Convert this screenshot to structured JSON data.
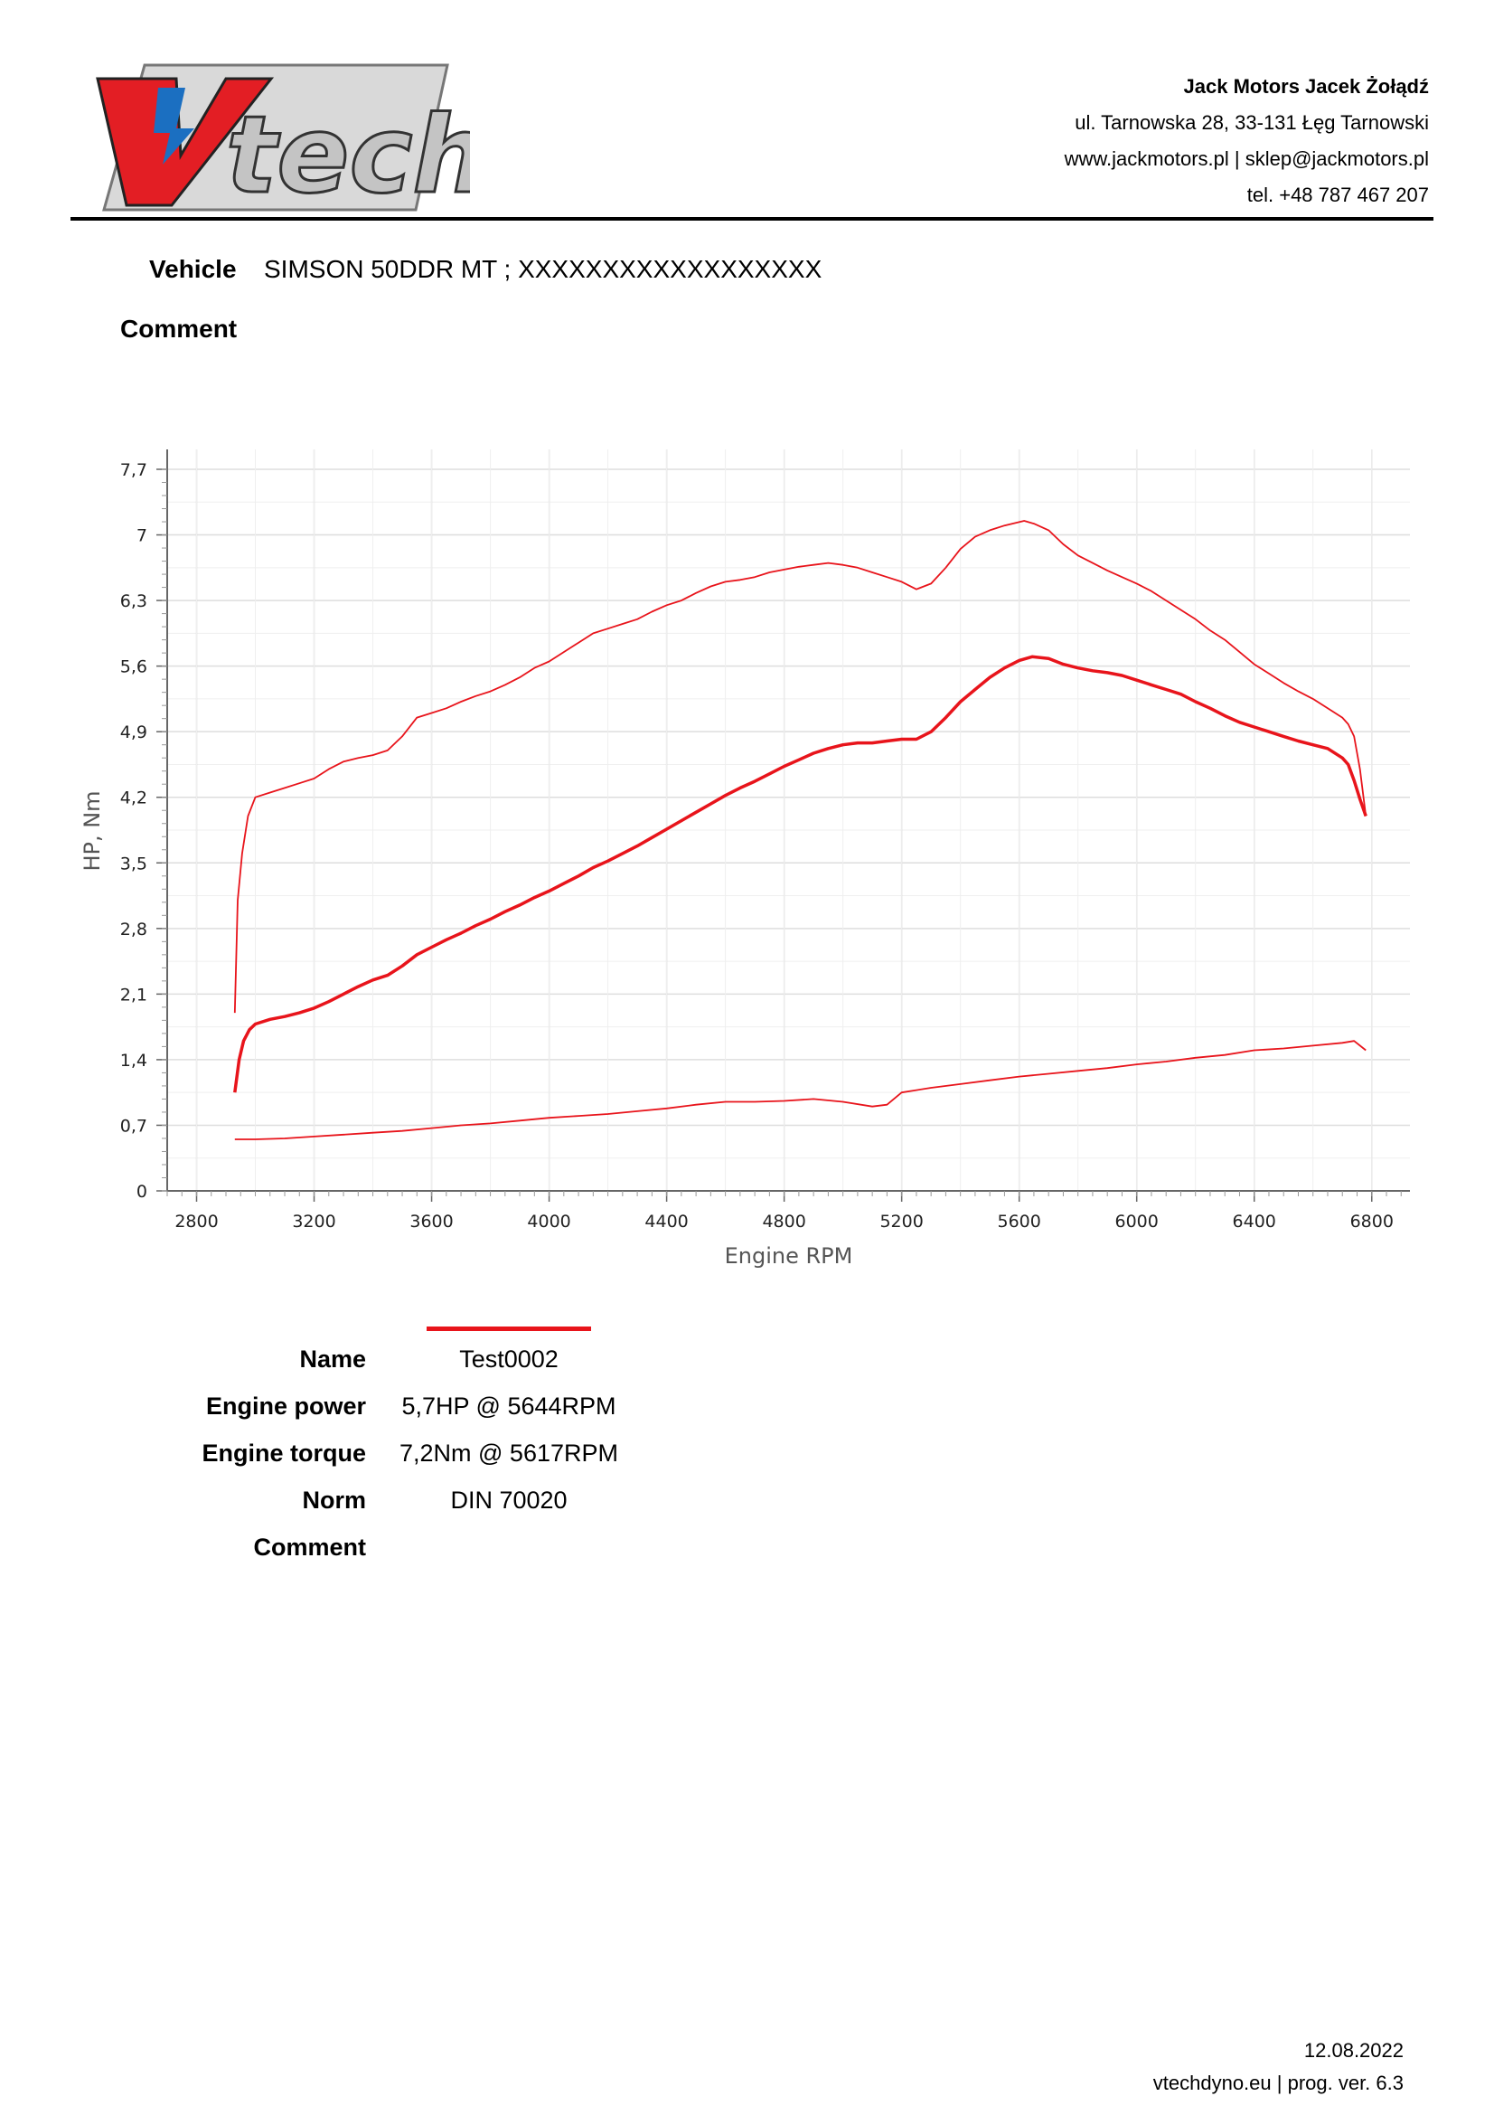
{
  "header": {
    "logo_text": "V-tech",
    "company_name": "Jack Motors Jacek Żołądź",
    "address": "ul. Tarnowska 28, 33-131 Łęg Tarnowski",
    "contact": "www.jackmotors.pl | sklep@jackmotors.pl",
    "phone": "tel. +48 787 467 207"
  },
  "vehicle": {
    "label": "Vehicle",
    "value": "SIMSON 50DDR MT ; XXXXXXXXXXXXXXXXXX"
  },
  "comment": {
    "label": "Comment"
  },
  "colors": {
    "curve": "#e8141b",
    "grid": "#dedede",
    "axis": "#666666"
  },
  "chart_data": {
    "type": "line",
    "xlabel": "Engine RPM",
    "ylabel": "HP, Nm",
    "xlim": [
      2700,
      6930
    ],
    "ylim": [
      0,
      7.7
    ],
    "xticks": [
      2800,
      3200,
      3600,
      4000,
      4400,
      4800,
      5200,
      5600,
      6000,
      6400,
      6800
    ],
    "yticks": [
      0,
      0.7,
      1.4,
      2.1,
      2.8,
      3.5,
      4.2,
      4.9,
      5.6,
      6.3,
      7,
      7.7
    ],
    "ytick_labels": [
      "0",
      "0,7",
      "1,4",
      "2,1",
      "2,8",
      "3,5",
      "4,2",
      "4,9",
      "5,6",
      "6,3",
      "7",
      "7,7"
    ],
    "grid": true,
    "series": [
      {
        "x": [
          2930,
          2945,
          2960,
          2980,
          3000,
          3050,
          3100,
          3150,
          3200,
          3250,
          3300,
          3350,
          3400,
          3450,
          3500,
          3550,
          3600,
          3650,
          3700,
          3750,
          3800,
          3850,
          3900,
          3950,
          4000,
          4050,
          4100,
          4150,
          4200,
          4250,
          4300,
          4350,
          4400,
          4450,
          4500,
          4550,
          4600,
          4650,
          4700,
          4750,
          4800,
          4850,
          4900,
          4950,
          5000,
          5050,
          5100,
          5150,
          5200,
          5250,
          5300,
          5350,
          5400,
          5450,
          5500,
          5550,
          5600,
          5644,
          5700,
          5750,
          5800,
          5850,
          5900,
          5950,
          6000,
          6050,
          6100,
          6150,
          6200,
          6250,
          6300,
          6350,
          6400,
          6450,
          6500,
          6550,
          6600,
          6650,
          6700,
          6720,
          6740,
          6760,
          6780
        ],
        "y": [
          1.05,
          1.4,
          1.6,
          1.72,
          1.78,
          1.83,
          1.86,
          1.9,
          1.95,
          2.02,
          2.1,
          2.18,
          2.25,
          2.3,
          2.4,
          2.52,
          2.6,
          2.68,
          2.75,
          2.83,
          2.9,
          2.98,
          3.05,
          3.13,
          3.2,
          3.28,
          3.36,
          3.45,
          3.52,
          3.6,
          3.68,
          3.77,
          3.86,
          3.95,
          4.04,
          4.13,
          4.22,
          4.3,
          4.37,
          4.45,
          4.53,
          4.6,
          4.67,
          4.72,
          4.76,
          4.78,
          4.78,
          4.8,
          4.82,
          4.82,
          4.9,
          5.05,
          5.22,
          5.35,
          5.48,
          5.58,
          5.66,
          5.7,
          5.68,
          5.62,
          5.58,
          5.55,
          5.53,
          5.5,
          5.45,
          5.4,
          5.35,
          5.3,
          5.22,
          5.15,
          5.07,
          5.0,
          4.95,
          4.9,
          4.85,
          4.8,
          4.76,
          4.72,
          4.62,
          4.55,
          4.38,
          4.18,
          4.0
        ]
      },
      {
        "x": [
          2930,
          2940,
          2955,
          2975,
          3000,
          3050,
          3100,
          3150,
          3200,
          3250,
          3300,
          3350,
          3400,
          3450,
          3500,
          3550,
          3600,
          3650,
          3700,
          3750,
          3800,
          3850,
          3900,
          3950,
          4000,
          4050,
          4100,
          4150,
          4200,
          4250,
          4300,
          4350,
          4400,
          4450,
          4500,
          4550,
          4600,
          4650,
          4700,
          4750,
          4800,
          4850,
          4900,
          4950,
          5000,
          5050,
          5100,
          5150,
          5200,
          5250,
          5300,
          5350,
          5400,
          5450,
          5500,
          5550,
          5617,
          5650,
          5700,
          5750,
          5800,
          5850,
          5900,
          5950,
          6000,
          6050,
          6100,
          6150,
          6200,
          6250,
          6300,
          6350,
          6400,
          6450,
          6500,
          6550,
          6600,
          6650,
          6700,
          6720,
          6740,
          6760,
          6780
        ],
        "y": [
          1.9,
          3.1,
          3.6,
          4.0,
          4.2,
          4.25,
          4.3,
          4.35,
          4.4,
          4.5,
          4.58,
          4.62,
          4.65,
          4.7,
          4.85,
          5.05,
          5.1,
          5.15,
          5.22,
          5.28,
          5.33,
          5.4,
          5.48,
          5.58,
          5.65,
          5.75,
          5.85,
          5.95,
          6.0,
          6.05,
          6.1,
          6.18,
          6.25,
          6.3,
          6.38,
          6.45,
          6.5,
          6.52,
          6.55,
          6.6,
          6.63,
          6.66,
          6.68,
          6.7,
          6.68,
          6.65,
          6.6,
          6.55,
          6.5,
          6.42,
          6.48,
          6.65,
          6.85,
          6.98,
          7.05,
          7.1,
          7.15,
          7.12,
          7.05,
          6.9,
          6.78,
          6.7,
          6.62,
          6.55,
          6.48,
          6.4,
          6.3,
          6.2,
          6.1,
          5.98,
          5.88,
          5.75,
          5.62,
          5.52,
          5.42,
          5.33,
          5.25,
          5.15,
          5.05,
          4.98,
          4.85,
          4.5,
          4.0
        ]
      },
      {
        "x": [
          2930,
          3000,
          3100,
          3200,
          3300,
          3400,
          3500,
          3600,
          3700,
          3800,
          3900,
          4000,
          4100,
          4200,
          4300,
          4400,
          4500,
          4600,
          4700,
          4800,
          4900,
          5000,
          5100,
          5150,
          5200,
          5300,
          5400,
          5500,
          5600,
          5700,
          5800,
          5900,
          6000,
          6100,
          6200,
          6300,
          6400,
          6500,
          6600,
          6700,
          6740,
          6780
        ],
        "y": [
          0.55,
          0.55,
          0.56,
          0.58,
          0.6,
          0.62,
          0.64,
          0.67,
          0.7,
          0.72,
          0.75,
          0.78,
          0.8,
          0.82,
          0.85,
          0.88,
          0.92,
          0.95,
          0.95,
          0.96,
          0.98,
          0.95,
          0.9,
          0.92,
          1.05,
          1.1,
          1.14,
          1.18,
          1.22,
          1.25,
          1.28,
          1.31,
          1.35,
          1.38,
          1.42,
          1.45,
          1.5,
          1.52,
          1.55,
          1.58,
          1.6,
          1.5
        ]
      }
    ]
  },
  "results": {
    "rows": [
      {
        "label": "Name",
        "value": "Test0002"
      },
      {
        "label": "Engine power",
        "value": "5,7HP @ 5644RPM"
      },
      {
        "label": "Engine torque",
        "value": "7,2Nm @ 5617RPM"
      },
      {
        "label": "Norm",
        "value": "DIN 70020"
      },
      {
        "label": "Comment",
        "value": ""
      }
    ]
  },
  "footer": {
    "date": "12.08.2022",
    "program": "vtechdyno.eu | prog. ver. 6.3"
  }
}
